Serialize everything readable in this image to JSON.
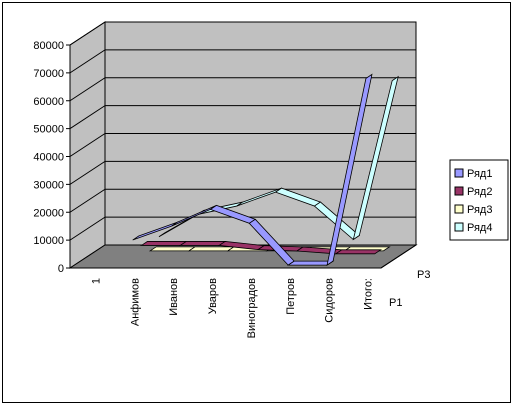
{
  "chart_data": {
    "type": "line",
    "title": "",
    "xlabel": "",
    "ylabel": "",
    "ylim": [
      0,
      80000
    ],
    "yticks": [
      "0",
      "10000",
      "20000",
      "30000",
      "40000",
      "50000",
      "60000",
      "70000",
      "80000"
    ],
    "categories": [
      "1",
      "Анфимов",
      "Иванов",
      "Уваров",
      "Виноградов",
      "Петров",
      "Сидоров",
      "Итого:"
    ],
    "depth_labels": [
      "P1",
      "P3"
    ],
    "grid": true,
    "legend_position": "right",
    "series": [
      {
        "name": "Ряд1",
        "color": "#9999ff",
        "values": [
          null,
          9000,
          14000,
          20000,
          15000,
          0,
          0,
          67000
        ]
      },
      {
        "name": "Ряд2",
        "color": "#993366",
        "values": [
          null,
          5000,
          5000,
          5000,
          3500,
          3000,
          2000,
          2000
        ]
      },
      {
        "name": "Ряд3",
        "color": "#ffffcc",
        "values": [
          null,
          1000,
          1000,
          1000,
          1000,
          1000,
          1000,
          1000
        ]
      },
      {
        "name": "Ряд4",
        "color": "#ccffff",
        "values": [
          null,
          4000,
          12000,
          15000,
          20000,
          15000,
          3000,
          60000
        ]
      }
    ]
  }
}
